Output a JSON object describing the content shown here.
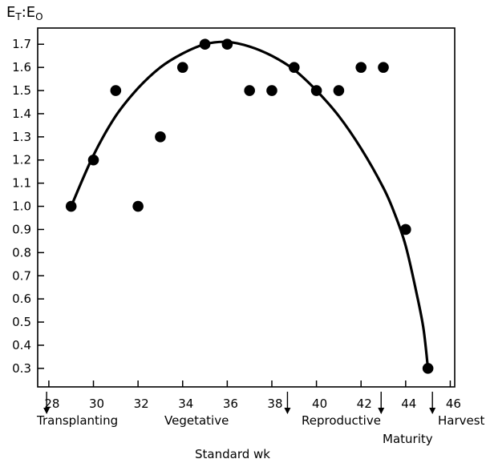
{
  "chart_data": {
    "type": "scatter",
    "title": "",
    "ylabel_main": "E",
    "ylabel_sub": "T",
    "ylabel_sep": ":E",
    "ylabel_sub2": "O",
    "xlabel": "Standard wk",
    "xlim": [
      27.5,
      46.2
    ],
    "ylim": [
      0.22,
      1.77
    ],
    "x_ticks": [
      28,
      30,
      32,
      34,
      36,
      38,
      40,
      42,
      44,
      46
    ],
    "y_ticks": [
      1.7,
      1.6,
      1.5,
      1.4,
      1.3,
      1.2,
      1.1,
      1.0,
      0.9,
      0.8,
      0.7,
      0.6,
      0.5,
      0.4,
      0.3
    ],
    "y_tick_labels": [
      "1.7",
      "1.6",
      "1.5",
      "1.4",
      "1.3",
      "1.2",
      "1.1",
      "1.0",
      "0.9",
      "0.8",
      "0.7",
      "0.6",
      "0.5",
      "0.4",
      "0.3"
    ],
    "grid": false,
    "points": [
      {
        "x": 29,
        "y": 1.0
      },
      {
        "x": 30,
        "y": 1.2
      },
      {
        "x": 31,
        "y": 1.5
      },
      {
        "x": 32,
        "y": 1.0
      },
      {
        "x": 33,
        "y": 1.3
      },
      {
        "x": 34,
        "y": 1.6
      },
      {
        "x": 35,
        "y": 1.7
      },
      {
        "x": 36,
        "y": 1.7
      },
      {
        "x": 37,
        "y": 1.5
      },
      {
        "x": 38,
        "y": 1.5
      },
      {
        "x": 39,
        "y": 1.6
      },
      {
        "x": 40,
        "y": 1.5
      },
      {
        "x": 41,
        "y": 1.5
      },
      {
        "x": 42,
        "y": 1.6
      },
      {
        "x": 43,
        "y": 1.6
      },
      {
        "x": 44,
        "y": 0.9
      },
      {
        "x": 45,
        "y": 0.3
      }
    ],
    "fit_curve": [
      {
        "x": 29,
        "y": 1.0
      },
      {
        "x": 30,
        "y": 1.22
      },
      {
        "x": 31,
        "y": 1.39
      },
      {
        "x": 32,
        "y": 1.51
      },
      {
        "x": 33,
        "y": 1.6
      },
      {
        "x": 34,
        "y": 1.66
      },
      {
        "x": 35,
        "y": 1.7
      },
      {
        "x": 36,
        "y": 1.71
      },
      {
        "x": 37,
        "y": 1.69
      },
      {
        "x": 38,
        "y": 1.65
      },
      {
        "x": 39,
        "y": 1.59
      },
      {
        "x": 40,
        "y": 1.5
      },
      {
        "x": 41,
        "y": 1.39
      },
      {
        "x": 42,
        "y": 1.25
      },
      {
        "x": 43,
        "y": 1.08
      },
      {
        "x": 43.5,
        "y": 0.97
      },
      {
        "x": 44,
        "y": 0.83
      },
      {
        "x": 44.5,
        "y": 0.62
      },
      {
        "x": 44.8,
        "y": 0.47
      },
      {
        "x": 45,
        "y": 0.3
      }
    ],
    "stages": [
      {
        "label": "Transplanting",
        "arrow_x": 27.9,
        "row": 1
      },
      {
        "label": "Vegetative",
        "arrow_x": null,
        "label_x": 33.8,
        "row": 1
      },
      {
        "label": "Reproductive",
        "arrow_x": 38.7,
        "row": 1
      },
      {
        "label": "Maturity",
        "arrow_x": 42.9,
        "row": 2
      },
      {
        "label": "Harvest",
        "arrow_x": 45.2,
        "row": 1
      }
    ]
  }
}
